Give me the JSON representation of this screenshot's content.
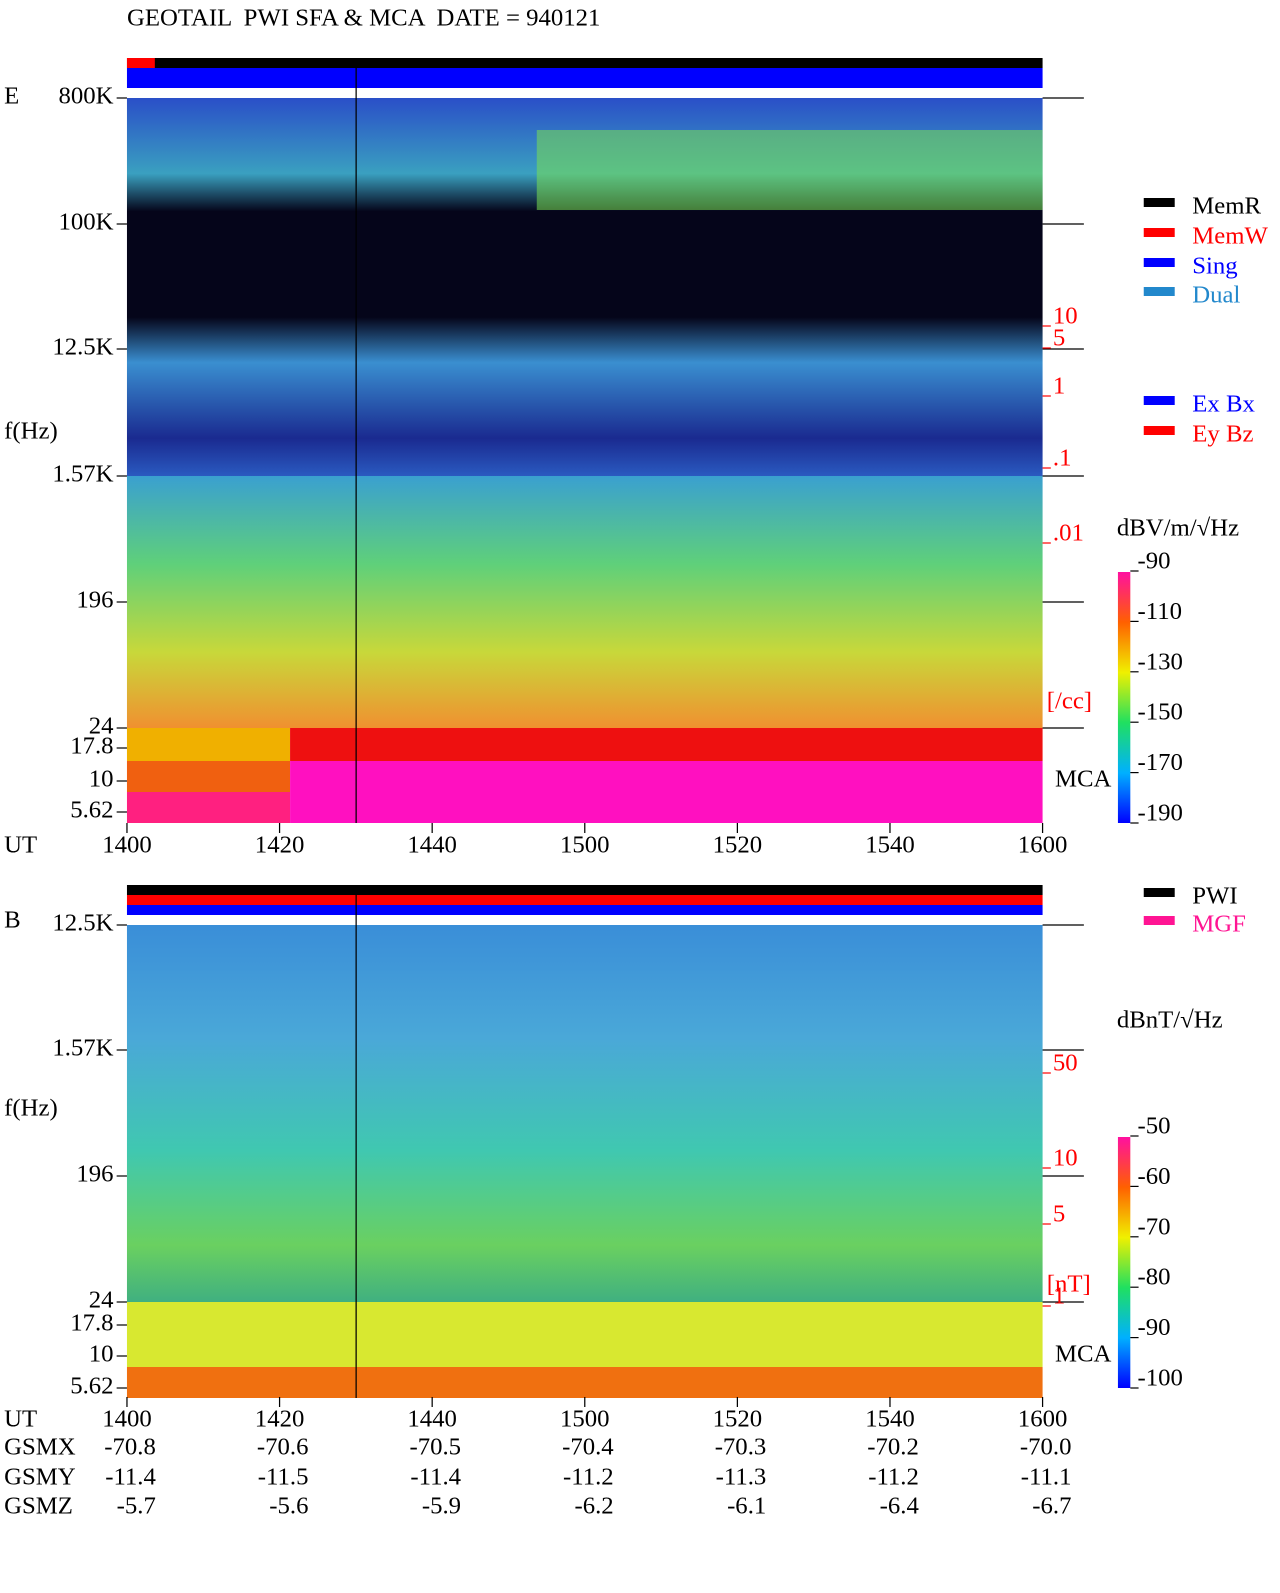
{
  "header": {
    "title": "GEOTAIL  PWI SFA & MCA  DATE = 940121"
  },
  "panels": [
    {
      "label": "E",
      "y_axis_label": "f(Hz)",
      "frequency_ticks": [
        "800K",
        "100K",
        "12.5K",
        "1.57K",
        "196",
        "24",
        "17.8",
        "10",
        "5.62"
      ],
      "density_ticks": [
        "10",
        "5",
        "1",
        ".1",
        ".01"
      ],
      "density_unit": "[/cc]",
      "mca_label": "MCA",
      "x_axis_label": "UT",
      "time_ticks": [
        "1400",
        "1420",
        "1440",
        "1500",
        "1520",
        "1540",
        "1600"
      ],
      "colorbar": {
        "unit": "dBV/m/√Hz",
        "ticks": [
          "-90",
          "-110",
          "-130",
          "-150",
          "-170",
          "-190"
        ]
      },
      "legend": [
        {
          "label": "MemR",
          "color": "#000000"
        },
        {
          "label": "MemW",
          "color": "#ff0000"
        },
        {
          "label": "Sing",
          "color": "#0000ff"
        },
        {
          "label": "Dual",
          "color": "#2288cc"
        },
        {
          "label": "Ex Bx",
          "color": "#0000ff"
        },
        {
          "label": "Ey Bz",
          "color": "#ff0000"
        }
      ]
    },
    {
      "label": "B",
      "y_axis_label": "f(Hz)",
      "frequency_ticks": [
        "12.5K",
        "1.57K",
        "196",
        "24",
        "17.8",
        "10",
        "5.62"
      ],
      "density_ticks": [
        "50",
        "10",
        "5",
        "1"
      ],
      "density_unit": "[nT]",
      "mca_label": "MCA",
      "x_axis_label": "UT",
      "time_ticks": [
        "1400",
        "1420",
        "1440",
        "1500",
        "1520",
        "1540",
        "1600"
      ],
      "colorbar": {
        "unit": "dBnT/√Hz",
        "ticks": [
          "-50",
          "-60",
          "-70",
          "-80",
          "-90",
          "-100"
        ]
      },
      "legend": [
        {
          "label": "PWI",
          "color": "#000000"
        },
        {
          "label": "MGF",
          "color": "#ff1493"
        }
      ]
    }
  ],
  "orbit": [
    {
      "name": "GSMX",
      "values": [
        "-70.8",
        "-70.6",
        "-70.5",
        "-70.4",
        "-70.3",
        "-70.2",
        "-70.0"
      ]
    },
    {
      "name": "GSMY",
      "values": [
        "-11.4",
        "-11.5",
        "-11.4",
        "-11.2",
        "-11.3",
        "-11.2",
        "-11.1"
      ]
    },
    {
      "name": "GSMZ",
      "values": [
        "-5.7",
        "-5.6",
        "-5.9",
        "-6.2",
        "-6.1",
        "-6.4",
        "-6.7"
      ]
    }
  ]
}
